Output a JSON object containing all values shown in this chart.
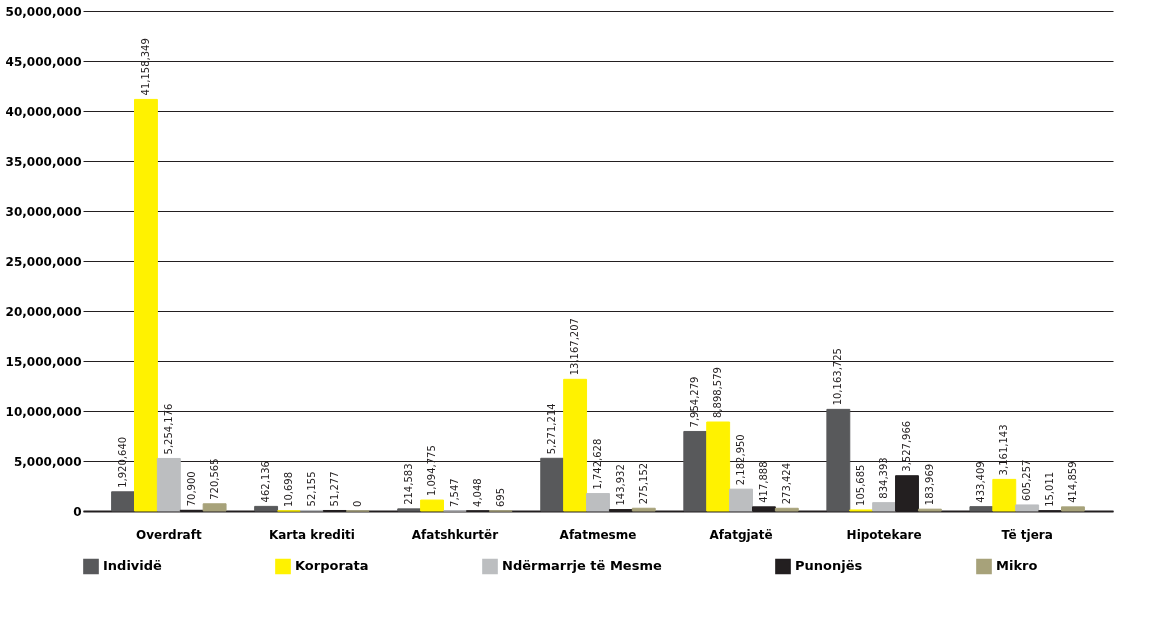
{
  "chart_data": {
    "type": "bar",
    "categories": [
      "Overdraft",
      "Karta krediti",
      "Afatshkurtër",
      "Afatmesme",
      "Afatgjatë",
      "Hipotekare",
      "Të tjera"
    ],
    "series": [
      {
        "name": "Individë",
        "color": "#58595b",
        "values": [
          1920640,
          462136,
          214583,
          5271214,
          7954279,
          10163725,
          433409
        ],
        "value_labels": [
          "1,920,640",
          "462,136",
          "214,583",
          "5,271,214",
          "7,954,279",
          "10,163,725",
          "433,409"
        ]
      },
      {
        "name": "Korporata",
        "color": "#fff200",
        "values": [
          41158349,
          10698,
          1094775,
          13167207,
          8898579,
          105685,
          3161143
        ],
        "value_labels": [
          "41,158,349",
          "10,698",
          "1,094,775",
          "13,167,207",
          "8,898,579",
          "105,685",
          "3,161,143"
        ]
      },
      {
        "name": "Ndërmarrje të Mesme",
        "color": "#bcbec0",
        "values": [
          5254176,
          52155,
          7547,
          1742628,
          2182950,
          834393,
          605257
        ],
        "value_labels": [
          "5,254,176",
          "52,155",
          "7,547",
          "1,742,628",
          "2,182,950",
          "834,393",
          "605,257"
        ]
      },
      {
        "name": "Punonjës",
        "color": "#231f20",
        "values": [
          70900,
          51277,
          4048,
          143932,
          417888,
          3527966,
          15011
        ],
        "value_labels": [
          "70,900",
          "51,277",
          "4,048",
          "143,932",
          "417,888",
          "3,527,966",
          "15,011"
        ]
      },
      {
        "name": "Mikro",
        "color": "#a7a27a",
        "values": [
          720565,
          0,
          695,
          275152,
          273424,
          183969,
          414859
        ],
        "value_labels": [
          "720,565",
          "0",
          "695",
          "275,152",
          "273,424",
          "183,969",
          "414,859"
        ]
      }
    ],
    "ylim": [
      0,
      50000000
    ],
    "yticks": [
      0,
      {
        "value": 5000000,
        "label": "5,000,000"
      },
      {
        "value": 10000000,
        "label": "10,000,000"
      },
      {
        "value": 15000000,
        "label": "15,000,000"
      },
      {
        "value": 20000000,
        "label": "20,000,000"
      },
      {
        "value": 25000000,
        "label": "25,000,000"
      },
      {
        "value": 30000000,
        "label": "30,000,000"
      },
      {
        "value": 35000000,
        "label": "35,000,000"
      },
      {
        "value": 40000000,
        "label": "40,000,000"
      },
      {
        "value": 45000000,
        "label": "45,000,000"
      },
      {
        "value": 50000000,
        "label": "50,000,000"
      }
    ],
    "grid": "y",
    "legend": "bottom"
  }
}
